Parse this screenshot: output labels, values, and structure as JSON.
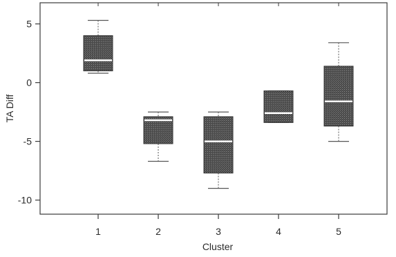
{
  "chart_data": {
    "type": "box",
    "title": "",
    "xlabel": "Cluster",
    "ylabel": "TA Diff",
    "categories": [
      "1",
      "2",
      "3",
      "4",
      "5"
    ],
    "boxes": [
      {
        "category": "1",
        "whisker_low": 0.8,
        "q1": 1.0,
        "median": 1.9,
        "q3": 4.0,
        "whisker_high": 5.3
      },
      {
        "category": "2",
        "whisker_low": -6.7,
        "q1": -5.2,
        "median": -3.2,
        "q3": -2.9,
        "whisker_high": -2.5
      },
      {
        "category": "3",
        "whisker_low": -9.0,
        "q1": -7.7,
        "median": -5.0,
        "q3": -2.9,
        "whisker_high": -2.5
      },
      {
        "category": "4",
        "whisker_low": -3.4,
        "q1": -3.4,
        "median": -2.6,
        "q3": -0.7,
        "whisker_high": -0.7
      },
      {
        "category": "5",
        "whisker_low": -5.0,
        "q1": -3.7,
        "median": -1.6,
        "q3": 1.4,
        "whisker_high": 3.4
      }
    ],
    "ylim": [
      -11.2,
      6.8
    ],
    "yticks": [
      5,
      0,
      -5,
      -10
    ],
    "ytick_labels": [
      "5",
      "0",
      "-5",
      "-10"
    ],
    "grid": false,
    "legend": "none",
    "colors": {
      "box_fill": "#5a5a5a",
      "median_line": "#ffffff",
      "axis": "#3a3a3a",
      "whisker": "#555555"
    }
  }
}
